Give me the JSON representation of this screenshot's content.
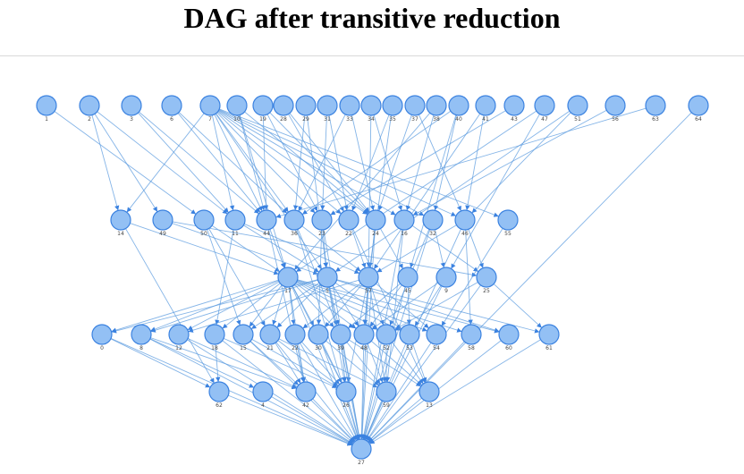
{
  "title": "DAG after transitive reduction",
  "colors": {
    "node_fill": "#93c0f4",
    "node_stroke": "#3b82e0",
    "edge": "#5b9bdf"
  },
  "graph": {
    "levels": [
      [
        "1",
        "2",
        "3",
        "6",
        "7",
        "10",
        "19",
        "28",
        "29",
        "31",
        "33",
        "34",
        "35",
        "37",
        "38",
        "40",
        "41",
        "43",
        "47",
        "51",
        "56",
        "63",
        "64"
      ],
      [
        "14",
        "49",
        "50",
        "11",
        "44",
        "36",
        "23",
        "22",
        "24",
        "16",
        "32",
        "46",
        "55"
      ],
      [
        "17",
        "5",
        "57",
        "45",
        "9",
        "25"
      ],
      [
        "0",
        "8",
        "12",
        "18",
        "15",
        "21",
        "22b",
        "30",
        "39",
        "48",
        "52",
        "53",
        "54",
        "58",
        "60",
        "61"
      ],
      [
        "62",
        "4",
        "42",
        "26",
        "59",
        "13"
      ],
      [
        "27"
      ]
    ],
    "labels": {
      "22b": "22"
    },
    "edges": [
      [
        "1",
        "50"
      ],
      [
        "2",
        "14"
      ],
      [
        "2",
        "49"
      ],
      [
        "2",
        "11"
      ],
      [
        "3",
        "44"
      ],
      [
        "3",
        "11"
      ],
      [
        "6",
        "36"
      ],
      [
        "6",
        "44"
      ],
      [
        "7",
        "14"
      ],
      [
        "7",
        "11"
      ],
      [
        "7",
        "44"
      ],
      [
        "7",
        "36"
      ],
      [
        "7",
        "23"
      ],
      [
        "7",
        "22"
      ],
      [
        "7",
        "24"
      ],
      [
        "7",
        "16"
      ],
      [
        "7",
        "32"
      ],
      [
        "7",
        "46"
      ],
      [
        "7",
        "55"
      ],
      [
        "7",
        "5"
      ],
      [
        "10",
        "17"
      ],
      [
        "10",
        "44"
      ],
      [
        "10",
        "24"
      ],
      [
        "19",
        "44"
      ],
      [
        "19",
        "24"
      ],
      [
        "19",
        "23"
      ],
      [
        "28",
        "24"
      ],
      [
        "28",
        "22"
      ],
      [
        "29",
        "36"
      ],
      [
        "29",
        "5"
      ],
      [
        "31",
        "22"
      ],
      [
        "31",
        "23"
      ],
      [
        "33",
        "36"
      ],
      [
        "33",
        "24"
      ],
      [
        "34",
        "16"
      ],
      [
        "34",
        "57"
      ],
      [
        "35",
        "22"
      ],
      [
        "35",
        "57"
      ],
      [
        "37",
        "46"
      ],
      [
        "37",
        "24"
      ],
      [
        "38",
        "16"
      ],
      [
        "38",
        "17"
      ],
      [
        "40",
        "32"
      ],
      [
        "40",
        "36"
      ],
      [
        "40",
        "45"
      ],
      [
        "41",
        "46"
      ],
      [
        "41",
        "57"
      ],
      [
        "43",
        "23"
      ],
      [
        "47",
        "17"
      ],
      [
        "47",
        "9"
      ],
      [
        "51",
        "46"
      ],
      [
        "51",
        "5"
      ],
      [
        "56",
        "16"
      ],
      [
        "63",
        "44"
      ],
      [
        "64",
        "27"
      ],
      [
        "14",
        "17"
      ],
      [
        "14",
        "62"
      ],
      [
        "49",
        "5"
      ],
      [
        "49",
        "25"
      ],
      [
        "50",
        "17"
      ],
      [
        "50",
        "21"
      ],
      [
        "50",
        "15"
      ],
      [
        "11",
        "5"
      ],
      [
        "11",
        "57"
      ],
      [
        "11",
        "18"
      ],
      [
        "44",
        "17"
      ],
      [
        "44",
        "42"
      ],
      [
        "36",
        "57"
      ],
      [
        "36",
        "39"
      ],
      [
        "23",
        "30"
      ],
      [
        "23",
        "5"
      ],
      [
        "22",
        "57"
      ],
      [
        "22",
        "13"
      ],
      [
        "24",
        "45"
      ],
      [
        "24",
        "48"
      ],
      [
        "16",
        "25"
      ],
      [
        "16",
        "59"
      ],
      [
        "32",
        "9"
      ],
      [
        "32",
        "52"
      ],
      [
        "46",
        "25"
      ],
      [
        "46",
        "58"
      ],
      [
        "46",
        "57"
      ],
      [
        "55",
        "54"
      ],
      [
        "17",
        "0"
      ],
      [
        "17",
        "8"
      ],
      [
        "17",
        "12"
      ],
      [
        "17",
        "18"
      ],
      [
        "17",
        "15"
      ],
      [
        "17",
        "21"
      ],
      [
        "17",
        "22b"
      ],
      [
        "17",
        "30"
      ],
      [
        "17",
        "39"
      ],
      [
        "17",
        "48"
      ],
      [
        "17",
        "52"
      ],
      [
        "17",
        "53"
      ],
      [
        "17",
        "54"
      ],
      [
        "17",
        "58"
      ],
      [
        "17",
        "60"
      ],
      [
        "17",
        "26"
      ],
      [
        "17",
        "42"
      ],
      [
        "17",
        "27"
      ],
      [
        "5",
        "0"
      ],
      [
        "5",
        "8"
      ],
      [
        "5",
        "15"
      ],
      [
        "5",
        "21"
      ],
      [
        "5",
        "39"
      ],
      [
        "5",
        "48"
      ],
      [
        "5",
        "53"
      ],
      [
        "5",
        "60"
      ],
      [
        "5",
        "61"
      ],
      [
        "5",
        "26"
      ],
      [
        "5",
        "27"
      ],
      [
        "57",
        "12"
      ],
      [
        "57",
        "22b"
      ],
      [
        "57",
        "30"
      ],
      [
        "57",
        "48"
      ],
      [
        "57",
        "52"
      ],
      [
        "57",
        "54"
      ],
      [
        "57",
        "26"
      ],
      [
        "57",
        "59"
      ],
      [
        "57",
        "27"
      ],
      [
        "45",
        "39"
      ],
      [
        "45",
        "48"
      ],
      [
        "45",
        "53"
      ],
      [
        "45",
        "27"
      ],
      [
        "9",
        "48"
      ],
      [
        "9",
        "53"
      ],
      [
        "9",
        "27"
      ],
      [
        "25",
        "61"
      ],
      [
        "25",
        "52"
      ],
      [
        "25",
        "27"
      ],
      [
        "0",
        "62"
      ],
      [
        "8",
        "4"
      ],
      [
        "8",
        "42"
      ],
      [
        "12",
        "42"
      ],
      [
        "18",
        "62"
      ],
      [
        "18",
        "26"
      ],
      [
        "15",
        "42"
      ],
      [
        "15",
        "26"
      ],
      [
        "21",
        "42"
      ],
      [
        "21",
        "26"
      ],
      [
        "21",
        "59"
      ],
      [
        "22b",
        "42"
      ],
      [
        "22b",
        "26"
      ],
      [
        "30",
        "26"
      ],
      [
        "30",
        "59"
      ],
      [
        "39",
        "26"
      ],
      [
        "39",
        "59"
      ],
      [
        "39",
        "13"
      ],
      [
        "48",
        "59"
      ],
      [
        "48",
        "13"
      ],
      [
        "48",
        "27"
      ],
      [
        "52",
        "59"
      ],
      [
        "52",
        "13"
      ],
      [
        "53",
        "13"
      ],
      [
        "53",
        "27"
      ],
      [
        "54",
        "27"
      ],
      [
        "58",
        "27"
      ],
      [
        "60",
        "27"
      ],
      [
        "61",
        "27"
      ],
      [
        "62",
        "27"
      ],
      [
        "4",
        "27"
      ],
      [
        "42",
        "27"
      ],
      [
        "26",
        "27"
      ],
      [
        "59",
        "27"
      ],
      [
        "13",
        "27"
      ],
      [
        "30",
        "27"
      ],
      [
        "39",
        "27"
      ],
      [
        "52",
        "27"
      ],
      [
        "21",
        "27"
      ],
      [
        "15",
        "27"
      ],
      [
        "22b",
        "27"
      ],
      [
        "12",
        "27"
      ],
      [
        "18",
        "27"
      ],
      [
        "8",
        "27"
      ],
      [
        "0",
        "27"
      ],
      [
        "24",
        "27"
      ],
      [
        "16",
        "27"
      ],
      [
        "46",
        "27"
      ],
      [
        "32",
        "27"
      ],
      [
        "36",
        "27"
      ],
      [
        "23",
        "27"
      ]
    ]
  }
}
